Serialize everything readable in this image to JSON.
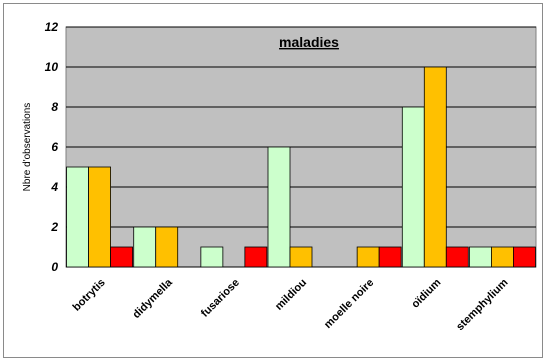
{
  "chart_data": {
    "type": "bar",
    "title": "maladies",
    "ylabel": "Nbre d'observations",
    "xlabel": "",
    "ylim": [
      0,
      12
    ],
    "yticks": [
      0,
      2,
      4,
      6,
      8,
      10,
      12
    ],
    "grid": true,
    "categories": [
      "botrytis",
      "didymella",
      "fusariose",
      "mildiou",
      "moelle noire",
      "oïdium",
      "stemphylium"
    ],
    "series": [
      {
        "color": "#ccffcc",
        "values": [
          5,
          2,
          1,
          6,
          0,
          8,
          1
        ]
      },
      {
        "color": "#ffc000",
        "values": [
          5,
          2,
          0,
          1,
          1,
          10,
          1
        ]
      },
      {
        "color": "#ff0000",
        "values": [
          1,
          0,
          1,
          0,
          1,
          1,
          1
        ]
      }
    ],
    "plot_background": "#c0c0c0"
  }
}
